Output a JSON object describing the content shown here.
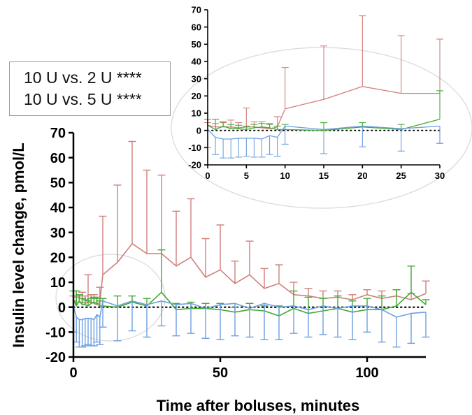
{
  "legend_box": {
    "lines": [
      "10 U vs. 2 U ****",
      "10 U vs. 5 U ****"
    ]
  },
  "colors": {
    "red": "#d07f7c",
    "green": "#43a934",
    "blue": "#6e9fe0",
    "axis": "#000000",
    "zoom_ellipse": "#d8d8d8",
    "stats_box_border": "#9a9a9a"
  },
  "chart_data": [
    {
      "id": "main",
      "type": "line",
      "title": "",
      "xlabel": "Time after boluses, minutes",
      "ylabel": "Insulin level change, pmol/L",
      "xlim": [
        0,
        120
      ],
      "ylim": [
        -20,
        70
      ],
      "xticks": [
        0,
        50,
        100
      ],
      "yticks": [
        -20,
        -10,
        0,
        10,
        20,
        30,
        40,
        50,
        60,
        70
      ],
      "grid": false,
      "legend": "none",
      "reference_line": {
        "y": 0,
        "style": "dotted"
      },
      "series": [
        {
          "color": "red",
          "x": [
            0,
            1,
            2,
            3,
            4,
            5,
            6,
            7,
            8,
            9,
            10,
            15,
            20,
            25,
            30,
            35,
            40,
            45,
            50,
            55,
            60,
            65,
            70,
            75,
            80,
            85,
            90,
            95,
            100,
            105,
            110,
            115,
            120
          ],
          "y": [
            3,
            2,
            2,
            2,
            1.5,
            2,
            2,
            1.5,
            1,
            2,
            13,
            18,
            25.5,
            21.5,
            21.5,
            16.5,
            20,
            12,
            15,
            9.5,
            13,
            7.5,
            9.5,
            5,
            4.5,
            3.5,
            4,
            3,
            5,
            3.5,
            4.5,
            3,
            5.5
          ],
          "err_up": [
            1.5,
            2,
            2.5,
            4,
            3,
            11,
            3,
            3.5,
            3,
            6,
            23.5,
            31,
            41,
            33.5,
            31.5,
            22,
            23.5,
            15.5,
            18,
            9,
            13.5,
            8,
            7.5,
            5,
            3,
            3,
            2.5,
            2,
            2,
            3,
            2.5,
            2.5,
            5
          ],
          "err_down": [
            0,
            0,
            0,
            0,
            0,
            0,
            0,
            0,
            0,
            0,
            0,
            0,
            0,
            0,
            0,
            0,
            0,
            0,
            0,
            0,
            0,
            0,
            0,
            0,
            0,
            0,
            0,
            0,
            0,
            0,
            0,
            0,
            0
          ]
        },
        {
          "color": "green",
          "x": [
            0,
            1,
            2,
            3,
            4,
            5,
            6,
            7,
            8,
            9,
            10,
            15,
            20,
            25,
            30,
            35,
            40,
            45,
            50,
            55,
            60,
            65,
            70,
            75,
            80,
            85,
            90,
            95,
            100,
            105,
            110,
            115,
            120
          ],
          "y": [
            3,
            0.5,
            2.5,
            1,
            1,
            0.5,
            1.5,
            2,
            1.5,
            0.5,
            0.5,
            0,
            2,
            0.5,
            6,
            -1,
            -0.5,
            -0.5,
            -1,
            -2,
            -1,
            -1.5,
            -3.5,
            -0.5,
            -2.5,
            -1.5,
            -0.5,
            -2,
            -1,
            -1,
            0.5,
            6,
            1
          ],
          "err_up": [
            3.5,
            6,
            2.5,
            2.5,
            2,
            2,
            2,
            2,
            2,
            2,
            3,
            4.5,
            2.5,
            3,
            17,
            2.5,
            2.5,
            2,
            2.5,
            2,
            2.5,
            2,
            4,
            7,
            6.5,
            5,
            5,
            4.5,
            4.5,
            5.5,
            6.5,
            10.5,
            2
          ],
          "err_down": [
            0,
            0,
            0,
            0,
            0,
            0,
            0,
            0,
            0,
            0,
            0,
            0,
            0,
            0,
            0,
            0,
            0,
            0,
            0,
            0,
            0,
            0,
            0,
            0,
            0,
            0,
            0,
            0,
            0,
            0,
            0,
            0,
            0
          ]
        },
        {
          "color": "blue",
          "x": [
            0,
            1,
            2,
            3,
            4,
            5,
            6,
            7,
            8,
            9,
            10,
            15,
            20,
            25,
            30,
            35,
            40,
            45,
            50,
            55,
            60,
            65,
            70,
            75,
            80,
            85,
            90,
            95,
            100,
            105,
            110,
            115,
            120
          ],
          "y": [
            0.5,
            -4,
            -5,
            -5,
            -4.5,
            -4.5,
            -4.5,
            -5,
            -3,
            -4,
            2.5,
            0.5,
            2.5,
            1,
            2.5,
            1,
            1.5,
            -0.5,
            1,
            1.5,
            -0.5,
            1.5,
            0,
            0.5,
            -1,
            0.5,
            -0.5,
            0.5,
            0.5,
            -1,
            -4,
            -2.5,
            -2
          ],
          "err_up": [
            0,
            0,
            0,
            0,
            0,
            0,
            0,
            0,
            0,
            0,
            0,
            0,
            0,
            0,
            0,
            0,
            0,
            0,
            0,
            0,
            0,
            0,
            0,
            0,
            0,
            0,
            0,
            0,
            0,
            0,
            0,
            0,
            0
          ],
          "err_down": [
            10.5,
            10,
            11,
            11,
            11,
            10.5,
            11,
            10.5,
            11,
            11,
            10.5,
            14,
            12,
            13,
            10,
            12.5,
            12,
            12,
            14,
            13,
            11.5,
            14.5,
            13,
            11,
            11,
            11.5,
            11.5,
            13.5,
            10.5,
            13,
            12,
            12,
            10
          ]
        }
      ]
    },
    {
      "id": "inset",
      "type": "line",
      "title": "",
      "xlabel": "",
      "ylabel": "",
      "xlim": [
        0,
        30
      ],
      "ylim": [
        -20,
        70
      ],
      "xticks": [
        0,
        5,
        10,
        15,
        20,
        25,
        30
      ],
      "yticks": [
        -20,
        -10,
        0,
        10,
        20,
        30,
        40,
        50,
        60,
        70
      ],
      "grid": false,
      "legend": "none",
      "reference_line": {
        "y": 0,
        "style": "dotted"
      },
      "series": [
        {
          "color": "red",
          "x": [
            0,
            1,
            2,
            3,
            4,
            5,
            6,
            7,
            8,
            9,
            10,
            15,
            20,
            25,
            30
          ],
          "y": [
            3,
            2,
            2,
            2,
            1.5,
            2,
            2,
            1.5,
            1,
            2,
            12.5,
            18,
            25.5,
            21.5,
            21.5
          ],
          "err_up": [
            1.5,
            2,
            2.5,
            4,
            3,
            11,
            3,
            3.5,
            3,
            6,
            24,
            31,
            41,
            33.5,
            31.5
          ],
          "err_down": [
            0,
            0,
            0,
            0,
            0,
            0,
            0,
            0,
            0,
            0,
            0,
            0,
            0,
            0,
            0
          ]
        },
        {
          "color": "green",
          "x": [
            0,
            1,
            2,
            3,
            4,
            5,
            6,
            7,
            8,
            9,
            10,
            15,
            20,
            25,
            30
          ],
          "y": [
            3,
            0.5,
            2.5,
            1,
            1,
            0.5,
            1.5,
            2,
            1.5,
            0.5,
            0.5,
            0,
            2,
            0.5,
            6.5
          ],
          "err_up": [
            3.5,
            6,
            2.5,
            2.5,
            2,
            2,
            2,
            2,
            2,
            2,
            3,
            4.5,
            2.5,
            3,
            16.5
          ],
          "err_down": [
            0,
            0,
            0,
            0,
            0,
            0,
            0,
            0,
            0,
            0,
            0,
            0,
            0,
            0,
            0
          ]
        },
        {
          "color": "blue",
          "x": [
            0,
            1,
            2,
            3,
            4,
            5,
            6,
            7,
            8,
            9,
            10,
            15,
            20,
            25,
            30
          ],
          "y": [
            0.5,
            -4,
            -5,
            -5,
            -4.5,
            -4.5,
            -4.5,
            -5,
            -3,
            -4,
            2.5,
            0.5,
            2.5,
            1,
            2.5
          ],
          "err_up": [
            0,
            0,
            0,
            0,
            0,
            0,
            0,
            0,
            0,
            0,
            0,
            0,
            0,
            0,
            0
          ],
          "err_down": [
            10.5,
            10,
            11,
            11,
            11,
            10.5,
            11,
            10.5,
            11,
            11,
            10.5,
            14,
            12,
            13,
            10
          ],
          "extra_whisker_at_x30": -7.5
        }
      ]
    }
  ]
}
